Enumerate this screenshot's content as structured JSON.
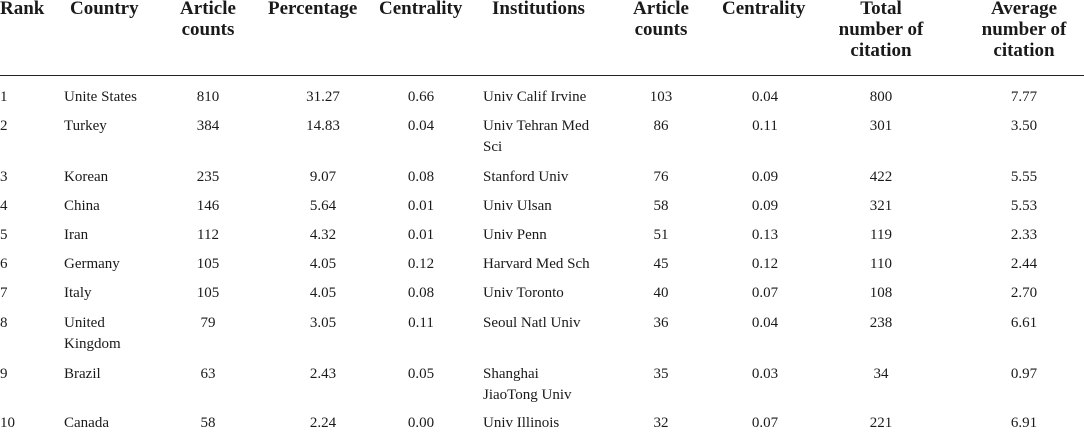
{
  "headers": {
    "rank": "Rank",
    "country": "Country",
    "country_articles": [
      "Article",
      "counts"
    ],
    "percentage": "Percentage",
    "country_centrality": "Centrality",
    "institutions": "Institutions",
    "inst_articles": [
      "Article",
      "counts"
    ],
    "inst_centrality": "Centrality",
    "total_citation": [
      "Total",
      "number of",
      "citation"
    ],
    "avg_citation": [
      "Average",
      "number of",
      "citation"
    ]
  },
  "rows": [
    {
      "rank": "1",
      "country": [
        "Unite States"
      ],
      "articles": "810",
      "percentage": "31.27",
      "centrality": "0.66",
      "institution": [
        "Univ Calif Irvine"
      ],
      "inst_articles": "103",
      "inst_centrality": "0.04",
      "total_citation": "800",
      "avg_citation": "7.77"
    },
    {
      "rank": "2",
      "country": [
        "Turkey"
      ],
      "articles": "384",
      "percentage": "14.83",
      "centrality": "0.04",
      "institution": [
        "Univ Tehran Med",
        "Sci"
      ],
      "inst_articles": "86",
      "inst_centrality": "0.11",
      "total_citation": "301",
      "avg_citation": "3.50"
    },
    {
      "rank": "3",
      "country": [
        "Korean"
      ],
      "articles": "235",
      "percentage": "9.07",
      "centrality": "0.08",
      "institution": [
        "Stanford Univ"
      ],
      "inst_articles": "76",
      "inst_centrality": "0.09",
      "total_citation": "422",
      "avg_citation": "5.55"
    },
    {
      "rank": "4",
      "country": [
        "China"
      ],
      "articles": "146",
      "percentage": "5.64",
      "centrality": "0.01",
      "institution": [
        "Univ Ulsan"
      ],
      "inst_articles": "58",
      "inst_centrality": "0.09",
      "total_citation": "321",
      "avg_citation": "5.53"
    },
    {
      "rank": "5",
      "country": [
        "Iran"
      ],
      "articles": "112",
      "percentage": "4.32",
      "centrality": "0.01",
      "institution": [
        "Univ Penn"
      ],
      "inst_articles": "51",
      "inst_centrality": "0.13",
      "total_citation": "119",
      "avg_citation": "2.33"
    },
    {
      "rank": "6",
      "country": [
        "Germany"
      ],
      "articles": "105",
      "percentage": "4.05",
      "centrality": "0.12",
      "institution": [
        "Harvard Med Sch"
      ],
      "inst_articles": "45",
      "inst_centrality": "0.12",
      "total_citation": "110",
      "avg_citation": "2.44"
    },
    {
      "rank": "7",
      "country": [
        "Italy"
      ],
      "articles": "105",
      "percentage": "4.05",
      "centrality": "0.08",
      "institution": [
        "Univ Toronto"
      ],
      "inst_articles": "40",
      "inst_centrality": "0.07",
      "total_citation": "108",
      "avg_citation": "2.70"
    },
    {
      "rank": "8",
      "country": [
        "United",
        "Kingdom"
      ],
      "articles": "79",
      "percentage": "3.05",
      "centrality": "0.11",
      "institution": [
        "Seoul Natl Univ"
      ],
      "inst_articles": "36",
      "inst_centrality": "0.04",
      "total_citation": "238",
      "avg_citation": "6.61"
    },
    {
      "rank": "9",
      "country": [
        "Brazil"
      ],
      "articles": "63",
      "percentage": "2.43",
      "centrality": "0.05",
      "institution": [
        "Shanghai",
        "JiaoTong Univ"
      ],
      "inst_articles": "35",
      "inst_centrality": "0.03",
      "total_citation": "34",
      "avg_citation": "0.97"
    },
    {
      "rank": "10",
      "country": [
        "Canada"
      ],
      "articles": "58",
      "percentage": "2.24",
      "centrality": "0.00",
      "institution": [
        "Univ Illinois"
      ],
      "inst_articles": "32",
      "inst_centrality": "0.07",
      "total_citation": "221",
      "avg_citation": "6.91"
    }
  ]
}
